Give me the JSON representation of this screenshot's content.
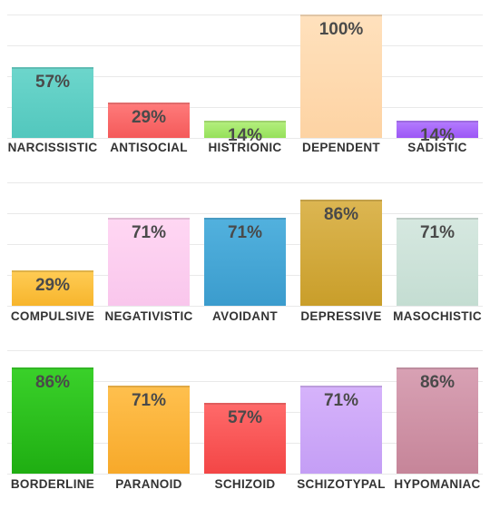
{
  "chart_data": [
    {
      "type": "bar",
      "ylim": [
        0,
        100
      ],
      "unit": "%",
      "categories": [
        "NARCISSISTIC",
        "ANTISOCIAL",
        "HISTRIONIC",
        "DEPENDENT",
        "SADISTIC"
      ],
      "values": [
        57,
        29,
        14,
        100,
        14
      ],
      "colors": [
        [
          "#6dd6cc",
          "#52c7bd"
        ],
        [
          "#ff7b7b",
          "#f45a5a"
        ],
        [
          "#b6f080",
          "#95e05a"
        ],
        [
          "#ffe1bd",
          "#fdd3a3"
        ],
        [
          "#b57dff",
          "#9c57f5"
        ]
      ]
    },
    {
      "type": "bar",
      "ylim": [
        0,
        100
      ],
      "unit": "%",
      "categories": [
        "COMPULSIVE",
        "NEGATIVISTIC",
        "AVOIDANT",
        "DEPRESSIVE",
        "MASOCHISTIC"
      ],
      "values": [
        29,
        71,
        71,
        86,
        71
      ],
      "colors": [
        [
          "#ffcc55",
          "#f7b52c"
        ],
        [
          "#ffd7f3",
          "#f9c6ec"
        ],
        [
          "#52b1de",
          "#3b9ccd"
        ],
        [
          "#dcb652",
          "#c99e2a"
        ],
        [
          "#d6e8e0",
          "#c4ddd2"
        ]
      ]
    },
    {
      "type": "bar",
      "ylim": [
        0,
        100
      ],
      "unit": "%",
      "categories": [
        "BORDERLINE",
        "PARANOID",
        "SCHIZOID",
        "SCHIZOTYPAL",
        "HYPOMANIAC"
      ],
      "values": [
        86,
        71,
        57,
        71,
        86
      ],
      "colors": [
        [
          "#3ad12a",
          "#1fae12"
        ],
        [
          "#ffc04e",
          "#f7a92a"
        ],
        [
          "#ff6a6a",
          "#f34646"
        ],
        [
          "#d6b3fb",
          "#c49ef5"
        ],
        [
          "#d8a1b4",
          "#c68599"
        ]
      ]
    }
  ]
}
